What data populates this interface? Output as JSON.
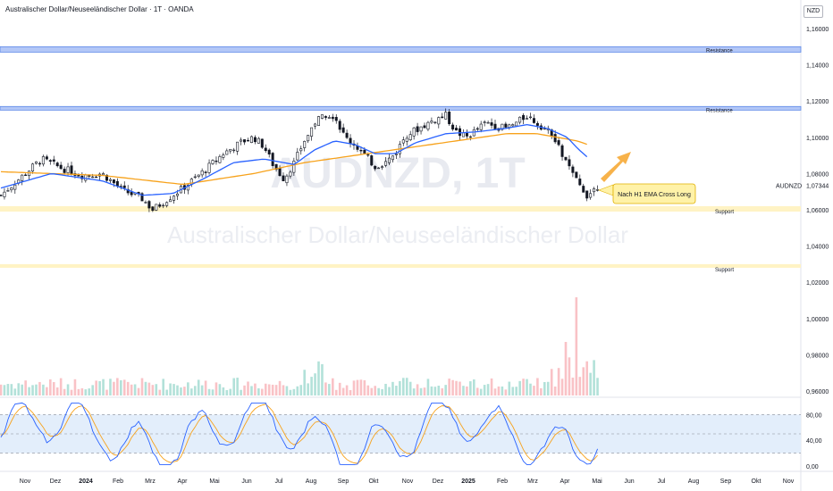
{
  "header": {
    "title": "Australischer Dollar/Neuseeländischer Dollar · 1T · OANDA",
    "currency": "NZD"
  },
  "chart_data": {
    "type": "candlestick",
    "symbol": "AUDNZD",
    "interval": "1T",
    "watermark_symbol": "AUDNZD, 1T",
    "watermark_name": "Australischer Dollar/Neuseeländischer Dollar",
    "price_axis": {
      "ticks": [
        "1,16000",
        "1,14000",
        "1,12000",
        "1,10000",
        "1,08000",
        "1,06000",
        "1,04000",
        "1,02000",
        "1,00000",
        "0,98000",
        "0,96000"
      ],
      "range": [
        0.96,
        1.16
      ]
    },
    "last_price": {
      "label": "AUDNZD",
      "value": "1,07344"
    },
    "time_axis": [
      "Nov",
      "Dez",
      "2024",
      "Feb",
      "Mrz",
      "Apr",
      "Mai",
      "Jun",
      "Jul",
      "Aug",
      "Sep",
      "Okt",
      "Nov",
      "Dez",
      "2025",
      "Feb",
      "Mrz",
      "Apr",
      "Mai",
      "Jun",
      "Jul",
      "Aug",
      "Sep",
      "Okt",
      "Nov"
    ],
    "close_path": [
      [
        0,
        1.068
      ],
      [
        4,
        1.078
      ],
      [
        8,
        1.088
      ],
      [
        12,
        1.083
      ],
      [
        16,
        1.079
      ],
      [
        20,
        1.08
      ],
      [
        24,
        1.071
      ],
      [
        28,
        1.066
      ],
      [
        30,
        1.06
      ],
      [
        32,
        1.064
      ],
      [
        36,
        1.072
      ],
      [
        40,
        1.081
      ],
      [
        44,
        1.091
      ],
      [
        48,
        1.098
      ],
      [
        50,
        1.1
      ],
      [
        52,
        1.095
      ],
      [
        54,
        1.084
      ],
      [
        56,
        1.077
      ],
      [
        58,
        1.086
      ],
      [
        60,
        1.098
      ],
      [
        62,
        1.108
      ],
      [
        64,
        1.113
      ],
      [
        66,
        1.112
      ],
      [
        68,
        1.1
      ],
      [
        70,
        1.096
      ],
      [
        72,
        1.09
      ],
      [
        74,
        1.084
      ],
      [
        76,
        1.086
      ],
      [
        78,
        1.091
      ],
      [
        80,
        1.101
      ],
      [
        82,
        1.104
      ],
      [
        84,
        1.107
      ],
      [
        86,
        1.11
      ],
      [
        88,
        1.112
      ],
      [
        90,
        1.103
      ],
      [
        92,
        1.1
      ],
      [
        94,
        1.104
      ],
      [
        96,
        1.108
      ],
      [
        98,
        1.106
      ],
      [
        100,
        1.105
      ],
      [
        102,
        1.108
      ],
      [
        104,
        1.112
      ],
      [
        106,
        1.108
      ],
      [
        108,
        1.104
      ],
      [
        110,
        1.096
      ],
      [
        112,
        1.085
      ],
      [
        114,
        1.075
      ],
      [
        116,
        1.068
      ],
      [
        118,
        1.073
      ]
    ],
    "ema_blue": [
      [
        0,
        1.072
      ],
      [
        10,
        1.08
      ],
      [
        20,
        1.076
      ],
      [
        28,
        1.068
      ],
      [
        34,
        1.069
      ],
      [
        40,
        1.077
      ],
      [
        46,
        1.086
      ],
      [
        52,
        1.088
      ],
      [
        58,
        1.085
      ],
      [
        62,
        1.093
      ],
      [
        66,
        1.098
      ],
      [
        70,
        1.096
      ],
      [
        74,
        1.091
      ],
      [
        78,
        1.091
      ],
      [
        82,
        1.097
      ],
      [
        88,
        1.102
      ],
      [
        94,
        1.103
      ],
      [
        100,
        1.105
      ],
      [
        104,
        1.107
      ],
      [
        108,
        1.105
      ],
      [
        112,
        1.1
      ],
      [
        114,
        1.094
      ],
      [
        116,
        1.089
      ]
    ],
    "ema_orange": [
      [
        0,
        1.081
      ],
      [
        20,
        1.079
      ],
      [
        36,
        1.074
      ],
      [
        50,
        1.08
      ],
      [
        60,
        1.086
      ],
      [
        70,
        1.09
      ],
      [
        80,
        1.094
      ],
      [
        90,
        1.098
      ],
      [
        100,
        1.102
      ],
      [
        106,
        1.102
      ],
      [
        110,
        1.1
      ],
      [
        114,
        1.098
      ],
      [
        116,
        1.096
      ]
    ],
    "zones": [
      {
        "kind": "resistance",
        "label": "Resistance",
        "low": 1.147,
        "high": 1.15
      },
      {
        "kind": "resistance",
        "label": "Resistance",
        "low": 1.115,
        "high": 1.117
      },
      {
        "kind": "support",
        "label": "Support",
        "low": 1.059,
        "high": 1.062
      },
      {
        "kind": "support",
        "label": "Support",
        "low": 1.028,
        "high": 1.03
      }
    ],
    "annotation": {
      "text": "Nach H1 EMA Cross Long",
      "direction": "up"
    },
    "oscillator": {
      "ticks": [
        "80,00",
        "40,00",
        "0,00"
      ],
      "upper_band": 80,
      "lower_band": 20,
      "mid_line": 50
    },
    "colors": {
      "up": "#089981",
      "down": "#f23645",
      "candle": "#131722",
      "ema_fast": "#2962ff",
      "ema_slow": "#f7a21b",
      "resistance_zone": "#b3c7f7",
      "support_zone": "#fff3c4",
      "osc_k": "#2962ff",
      "osc_d": "#f7a21b"
    }
  }
}
